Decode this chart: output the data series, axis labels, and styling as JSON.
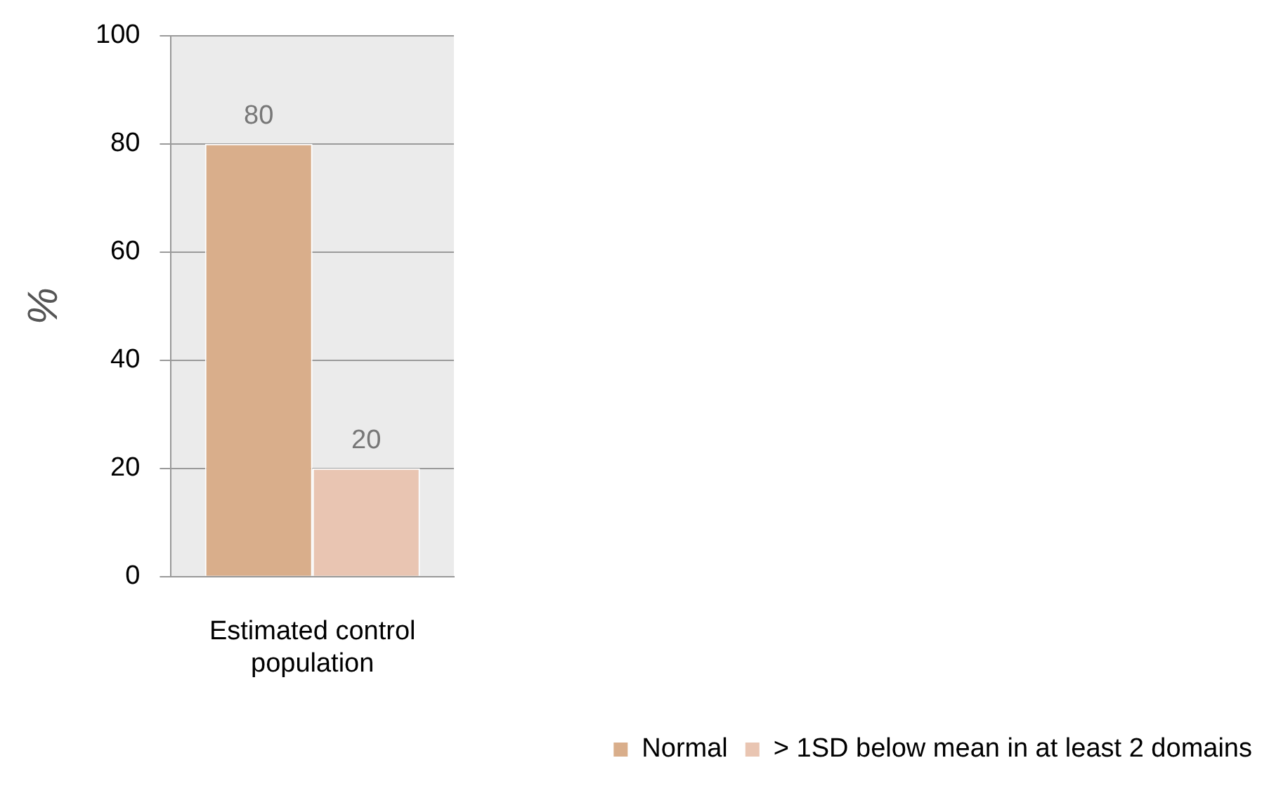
{
  "chart_data": {
    "type": "bar",
    "categories": [
      "Estimated control population"
    ],
    "series": [
      {
        "name": "Normal",
        "color": "#d9ae8b",
        "values": [
          80
        ]
      },
      {
        "name": "> 1SD below mean in at least 2 domains",
        "color": "#e9c5b2",
        "values": [
          20
        ]
      }
    ],
    "ylabel": "%",
    "ylim": [
      0,
      100
    ],
    "yticks": [
      0,
      20,
      40,
      60,
      80,
      100
    ],
    "grid": "y",
    "legend": "bottom right",
    "data_labels": true
  }
}
